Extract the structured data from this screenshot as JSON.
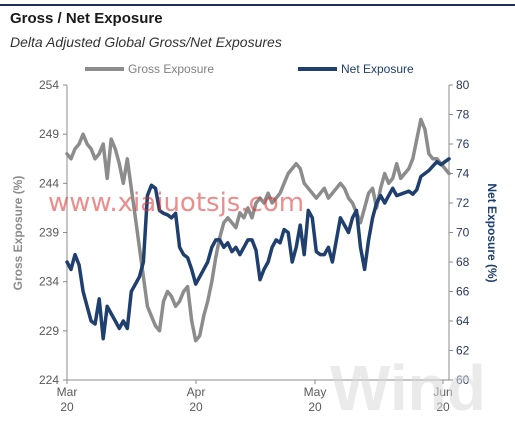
{
  "title": "Gross / Net Exposure",
  "subtitle": "Delta Adjusted Global Gross/Net Exposures",
  "watermarks": {
    "site": "www.xiaiuotsjs.com",
    "brand": "Wind"
  },
  "chart_data": {
    "type": "line",
    "x_tick_labels": [
      {
        "month": "Mar",
        "year": "20"
      },
      {
        "month": "Apr",
        "year": "20"
      },
      {
        "month": "May",
        "year": "20"
      },
      {
        "month": "Jun",
        "year": "20"
      }
    ],
    "ylabel_left": "Gross Exposure (%)",
    "ylabel_right": "Net Exposure (%)",
    "ylim_left": [
      224,
      254
    ],
    "yticks_left": [
      "254",
      "249",
      "244",
      "239",
      "234",
      "229",
      "224"
    ],
    "ylim_right": [
      60,
      80
    ],
    "yticks_right": [
      "80",
      "78",
      "76",
      "74",
      "72",
      "70",
      "68",
      "66",
      "64",
      "62",
      "60"
    ],
    "grid": false,
    "legend_placement": "top",
    "series": [
      {
        "name": "Gross Exposure",
        "axis": "left",
        "color": "#8c8c8c",
        "x": [
          0,
          1,
          2,
          3,
          4,
          5,
          6,
          7,
          8,
          9,
          10,
          11,
          12,
          13,
          14,
          15,
          16,
          17,
          18,
          19,
          20,
          21,
          22,
          23,
          24,
          25,
          26,
          27,
          28,
          29,
          30,
          31,
          32,
          33,
          34,
          35,
          36,
          37,
          38,
          39,
          40,
          41,
          42,
          43,
          44,
          45,
          46,
          47,
          48,
          49,
          50,
          51,
          52,
          53,
          54,
          55,
          56,
          57,
          58,
          59,
          60,
          61,
          62,
          63,
          64,
          65,
          66,
          67,
          68,
          69,
          70,
          71,
          72,
          73,
          74,
          75,
          76,
          77,
          78,
          79,
          80,
          81,
          82,
          83,
          84,
          85,
          86,
          87,
          88,
          89,
          90,
          91,
          92,
          93,
          94,
          95
        ],
        "values": [
          247.0,
          246.5,
          247.5,
          248.0,
          249.0,
          248.0,
          247.5,
          246.5,
          247.0,
          248.0,
          244.5,
          248.5,
          247.5,
          246.0,
          244.0,
          246.5,
          243.5,
          240.5,
          237.5,
          234.5,
          231.5,
          230.5,
          229.5,
          229.0,
          232.0,
          233.0,
          232.5,
          231.5,
          232.0,
          233.0,
          233.5,
          230.0,
          228.0,
          228.5,
          230.5,
          232.0,
          234.0,
          236.5,
          238.5,
          240.0,
          240.5,
          240.0,
          239.5,
          241.0,
          240.5,
          241.5,
          240.5,
          242.0,
          242.5,
          242.0,
          243.0,
          242.0,
          242.5,
          243.0,
          244.0,
          245.0,
          245.5,
          246.0,
          245.5,
          244.0,
          243.5,
          243.0,
          242.5,
          243.0,
          243.5,
          242.5,
          243.0,
          243.5,
          244.0,
          243.5,
          242.5,
          242.0,
          241.0,
          240.0,
          241.5,
          243.0,
          243.5,
          241.5,
          243.5,
          245.0,
          244.0,
          244.5,
          246.0,
          244.5,
          245.0,
          245.5,
          246.5,
          248.5,
          250.5,
          249.5,
          247.0,
          246.5,
          246.5,
          246.0,
          245.5,
          245.0
        ]
      },
      {
        "name": "Net Exposure",
        "axis": "right",
        "color": "#1f3f6f",
        "x": [
          0,
          1,
          2,
          3,
          4,
          5,
          6,
          7,
          8,
          9,
          10,
          11,
          12,
          13,
          14,
          15,
          16,
          17,
          18,
          19,
          20,
          21,
          22,
          23,
          24,
          25,
          26,
          27,
          28,
          29,
          30,
          31,
          32,
          33,
          34,
          35,
          36,
          37,
          38,
          39,
          40,
          41,
          42,
          43,
          44,
          45,
          46,
          47,
          48,
          49,
          50,
          51,
          52,
          53,
          54,
          55,
          56,
          57,
          58,
          59,
          60,
          61,
          62,
          63,
          64,
          65,
          66,
          67,
          68,
          69,
          70,
          71,
          72,
          73,
          74,
          75,
          76,
          77,
          78,
          79,
          80,
          81,
          82,
          83,
          84,
          85,
          86,
          87,
          88,
          89,
          90,
          91,
          92,
          93,
          94,
          95
        ],
        "values": [
          68.0,
          67.5,
          68.5,
          67.8,
          66.0,
          65.0,
          64.0,
          63.8,
          65.5,
          62.8,
          65.0,
          64.5,
          64.0,
          63.5,
          64.0,
          63.5,
          66.0,
          66.5,
          67.0,
          68.0,
          72.5,
          73.2,
          73.0,
          71.5,
          71.3,
          71.2,
          71.0,
          71.3,
          69.0,
          68.5,
          68.3,
          67.5,
          66.5,
          67.0,
          67.5,
          68.0,
          69.0,
          69.5,
          69.5,
          69.0,
          69.3,
          68.7,
          69.0,
          68.5,
          69.0,
          69.5,
          69.5,
          68.8,
          66.8,
          67.5,
          68.0,
          69.0,
          69.5,
          69.3,
          70.2,
          70.0,
          68.0,
          69.0,
          70.5,
          68.5,
          71.5,
          71.0,
          68.7,
          68.5,
          68.5,
          69.0,
          68.0,
          69.5,
          71.0,
          70.5,
          70.0,
          71.0,
          71.5,
          69.0,
          67.5,
          69.5,
          71.0,
          72.0,
          72.5,
          72.0,
          72.5,
          73.0,
          72.5,
          72.6,
          72.7,
          72.8,
          72.6,
          72.9,
          73.8,
          74.0,
          74.2,
          74.5,
          74.8,
          74.6,
          74.8,
          75.0
        ]
      }
    ]
  }
}
